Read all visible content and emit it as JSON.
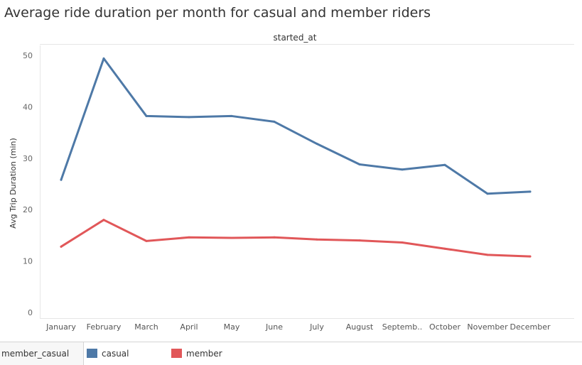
{
  "chart_data": {
    "type": "line",
    "title": "Average ride duration per month for casual and member riders",
    "column_header": "started_at",
    "xlabel": "",
    "ylabel": "Avg Trip Duration (min)",
    "ylim": [
      0,
      50
    ],
    "yticks": [
      0,
      10,
      20,
      30,
      40,
      50
    ],
    "categories": [
      "January",
      "February",
      "March",
      "April",
      "May",
      "June",
      "July",
      "August",
      "Septemb..",
      "October",
      "November",
      "December"
    ],
    "series": [
      {
        "name": "casual",
        "color": "#4e79a7",
        "values": [
          25.8,
          49.4,
          38.2,
          38.0,
          38.2,
          37.1,
          32.8,
          28.8,
          27.8,
          28.7,
          23.1,
          23.5
        ]
      },
      {
        "name": "member",
        "color": "#e15759",
        "values": [
          12.8,
          18.0,
          13.9,
          14.6,
          14.5,
          14.6,
          14.2,
          14.0,
          13.6,
          12.4,
          11.2,
          10.9
        ]
      }
    ],
    "grid": false,
    "legend_position": "bottom",
    "legend_field": "member_casual"
  }
}
